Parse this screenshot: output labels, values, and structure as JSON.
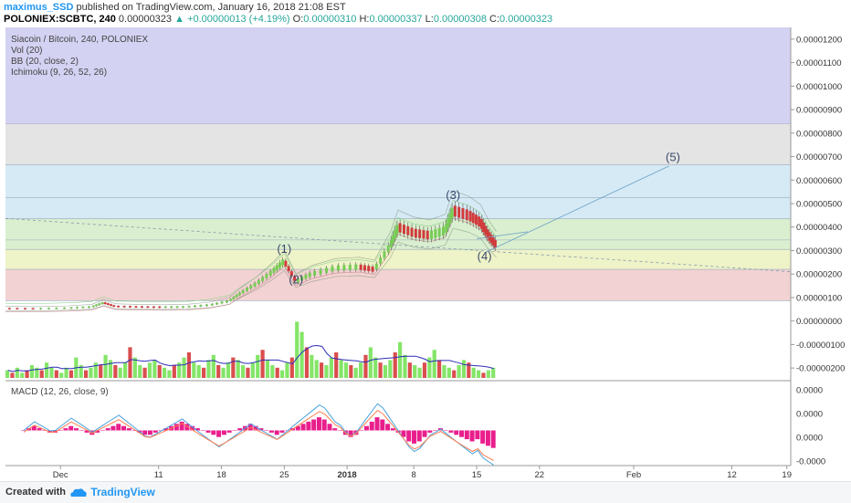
{
  "header": {
    "author": "maximus_SSD",
    "published": "published on TradingView.com, January 16, 2018 21:08 EST",
    "symbol": "POLONIEX:SCBTC, 240",
    "last": "0.00000323",
    "change": "+0.00000013 (+4.19%)",
    "o_label": "O:",
    "o": "0.00000310",
    "h_label": "H:",
    "h": "0.00000337",
    "l_label": "L:",
    "l": "0.00000308",
    "c_label": "C:",
    "c": "0.00000323"
  },
  "legend": {
    "title": "Siacoin / Bitcoin, 240, POLONIEX",
    "vol": "Vol (20)",
    "bb": "BB (20, close, 2)",
    "ichimoku": "Ichimoku (9, 26, 52, 26)",
    "macd": "MACD (12, 26, close, 9)"
  },
  "footer": {
    "created": "Created with",
    "brand": "TradingView"
  },
  "colors": {
    "up": "#26a69a",
    "candle_up": "#77cc55",
    "candle_down": "#d13b3b",
    "vol_up": "#6fe14d",
    "vol_down": "#d32f2f",
    "vol_ma": "#2d2db8",
    "macd": "#4aa3df",
    "signal": "#ff7f50",
    "hist": "#e91e8c",
    "zone_purple": "#d4d2f2",
    "zone_gray": "#e4e4e4",
    "zone_blue": "#d6eaf5",
    "zone_green": "#d9efcf",
    "zone_yellow": "#eef3c8",
    "zone_red": "#f2d2d2"
  },
  "chart_data": [
    {
      "type": "candlestick",
      "title": "Siacoin / Bitcoin, 240, POLONIEX",
      "x_ticks": [
        "Dec",
        "11",
        "18",
        "25",
        "2018",
        "8",
        "15",
        "22",
        "Feb",
        "12",
        "19"
      ],
      "y_ticks": [
        "0.00001200",
        "0.00001100",
        "0.00001000",
        "0.00000900",
        "0.00000800",
        "0.00000700",
        "0.00000600",
        "0.00000500",
        "0.00000400",
        "0.00000300",
        "0.00000200",
        "0.00000100",
        "0.00000000",
        "-0.00000100",
        "-0.00000200"
      ],
      "price_range": [
        -2.5e-06,
        1.25e-05
      ],
      "fib_levels": [
        8.7e-07,
        2.2e-06,
        3.05e-06,
        3.45e-06,
        4.35e-06,
        5.25e-06,
        6.65e-06,
        8.4e-06
      ],
      "wave_labels": [
        {
          "label": "(1)",
          "t": 0.355,
          "price": 2.9e-06
        },
        {
          "label": "(2)",
          "t": 0.37,
          "price": 1.6e-06
        },
        {
          "label": "(3)",
          "t": 0.57,
          "price": 5.2e-06
        },
        {
          "label": "(4)",
          "t": 0.61,
          "price": 2.6e-06
        },
        {
          "label": "(5)",
          "t": 0.85,
          "price": 6.8e-06
        }
      ],
      "price_series": [
        [
          0.0,
          5.3e-07
        ],
        [
          0.04,
          5.2e-07
        ],
        [
          0.08,
          5.5e-07
        ],
        [
          0.11,
          6e-07
        ],
        [
          0.125,
          7.8e-07
        ],
        [
          0.14,
          6.2e-07
        ],
        [
          0.17,
          6e-07
        ],
        [
          0.2,
          5.9e-07
        ],
        [
          0.23,
          6e-07
        ],
        [
          0.26,
          6.8e-07
        ],
        [
          0.285,
          8.5e-07
        ],
        [
          0.3,
          1.2e-06
        ],
        [
          0.32,
          1.6e-06
        ],
        [
          0.34,
          2.1e-06
        ],
        [
          0.355,
          2.55e-06
        ],
        [
          0.37,
          1.7e-06
        ],
        [
          0.39,
          2e-06
        ],
        [
          0.42,
          2.25e-06
        ],
        [
          0.45,
          2.3e-06
        ],
        [
          0.47,
          2.2e-06
        ],
        [
          0.49,
          3.2e-06
        ],
        [
          0.5,
          4e-06
        ],
        [
          0.52,
          3.75e-06
        ],
        [
          0.54,
          3.65e-06
        ],
        [
          0.56,
          3.85e-06
        ],
        [
          0.57,
          4.7e-06
        ],
        [
          0.59,
          4.5e-06
        ],
        [
          0.605,
          4.2e-06
        ],
        [
          0.615,
          3.65e-06
        ],
        [
          0.625,
          3.23e-06
        ]
      ],
      "volume": [
        3,
        2,
        4,
        2,
        3,
        5,
        4,
        3,
        6,
        4,
        3,
        2,
        4,
        3,
        8,
        5,
        3,
        4,
        6,
        5,
        9,
        7,
        5,
        4,
        6,
        12,
        8,
        5,
        4,
        6,
        7,
        5,
        4,
        3,
        5,
        6,
        8,
        10,
        6,
        5,
        4,
        7,
        9,
        5,
        4,
        6,
        8,
        7,
        5,
        4,
        6,
        9,
        11,
        7,
        5,
        4,
        3,
        6,
        8,
        22,
        18,
        12,
        9,
        7,
        6,
        5,
        8,
        10,
        7,
        6,
        5,
        4,
        6,
        9,
        12,
        8,
        6,
        5,
        7,
        10,
        14,
        9,
        6,
        5,
        4,
        6,
        8,
        11,
        7,
        5,
        4,
        3,
        5,
        7,
        6,
        4,
        3,
        2,
        3,
        4
      ],
      "macd_hist": [
        0,
        1,
        2,
        1,
        0,
        -1,
        -1,
        0,
        1,
        2,
        1,
        0,
        -1,
        -2,
        -1,
        0,
        1,
        2,
        3,
        2,
        1,
        0,
        -1,
        -2,
        -2,
        -1,
        0,
        1,
        2,
        3,
        4,
        3,
        2,
        1,
        0,
        -1,
        -2,
        -3,
        -2,
        -1,
        0,
        1,
        2,
        3,
        2,
        1,
        0,
        -1,
        -2,
        -1,
        0,
        1,
        2,
        3,
        4,
        5,
        6,
        5,
        3,
        1,
        0,
        -2,
        -3,
        -2,
        0,
        2,
        4,
        6,
        5,
        3,
        1,
        -1,
        -3,
        -5,
        -6,
        -5,
        -3,
        -1,
        0,
        1,
        0,
        -1,
        -2,
        -3,
        -4,
        -5,
        -4,
        -6,
        -7,
        -8
      ]
    }
  ]
}
